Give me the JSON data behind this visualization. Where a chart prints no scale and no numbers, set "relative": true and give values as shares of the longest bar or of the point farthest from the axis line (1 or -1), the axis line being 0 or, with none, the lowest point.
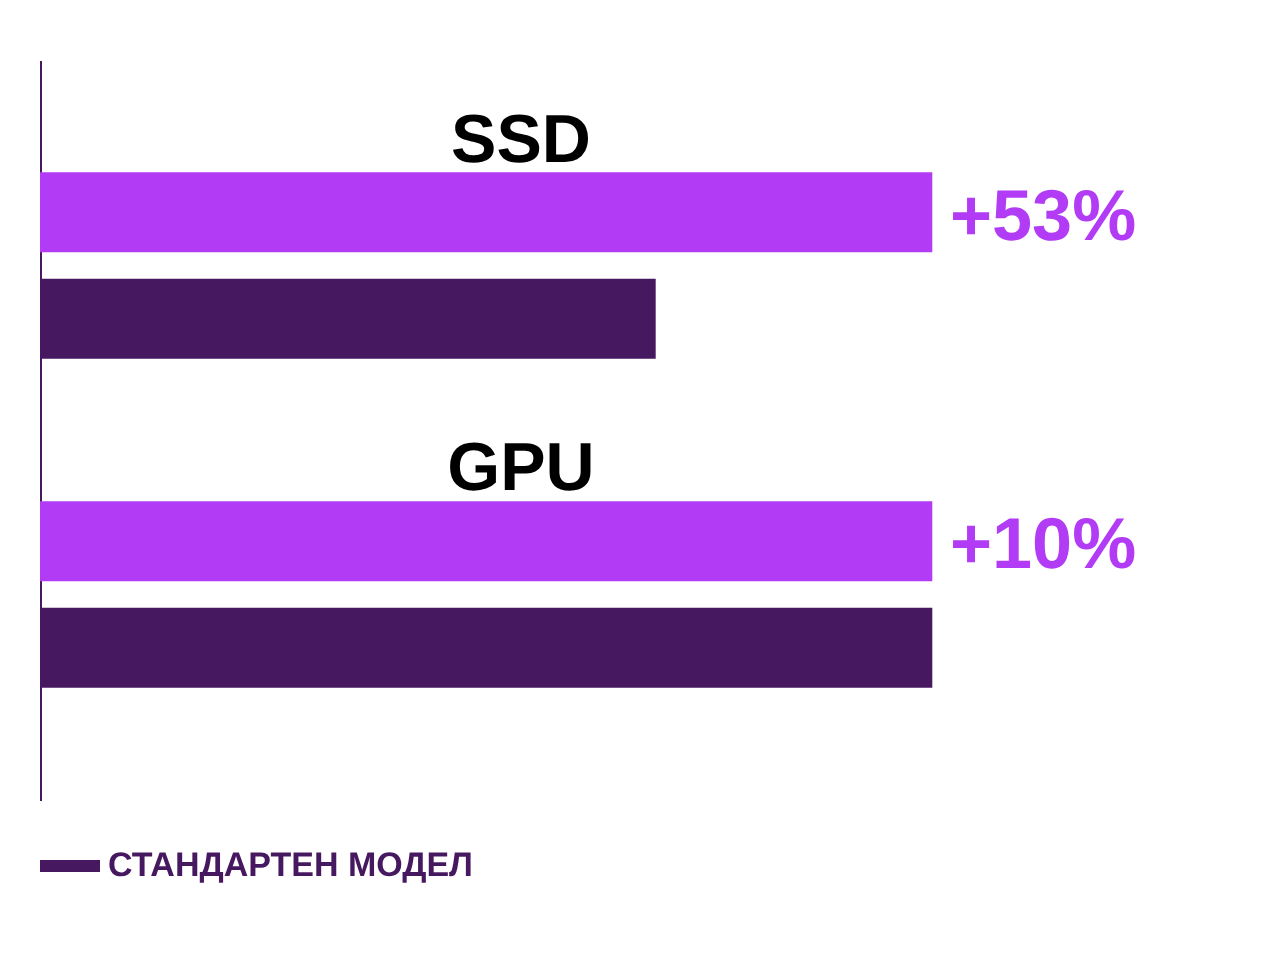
{
  "chart_data": {
    "type": "bar",
    "orientation": "horizontal",
    "relative": true,
    "categories": [
      "SSD",
      "GPU"
    ],
    "series": [
      {
        "color": "#b23cf5",
        "values": [
          1,
          1
        ]
      },
      {
        "name": "СТАНДАРТЕН МОДЕЛ",
        "color": "#46185f",
        "values": [
          0.69,
          1
        ]
      }
    ],
    "annotations": [
      "+53%",
      "+10%"
    ],
    "legend": "bottom",
    "grid": false
  }
}
